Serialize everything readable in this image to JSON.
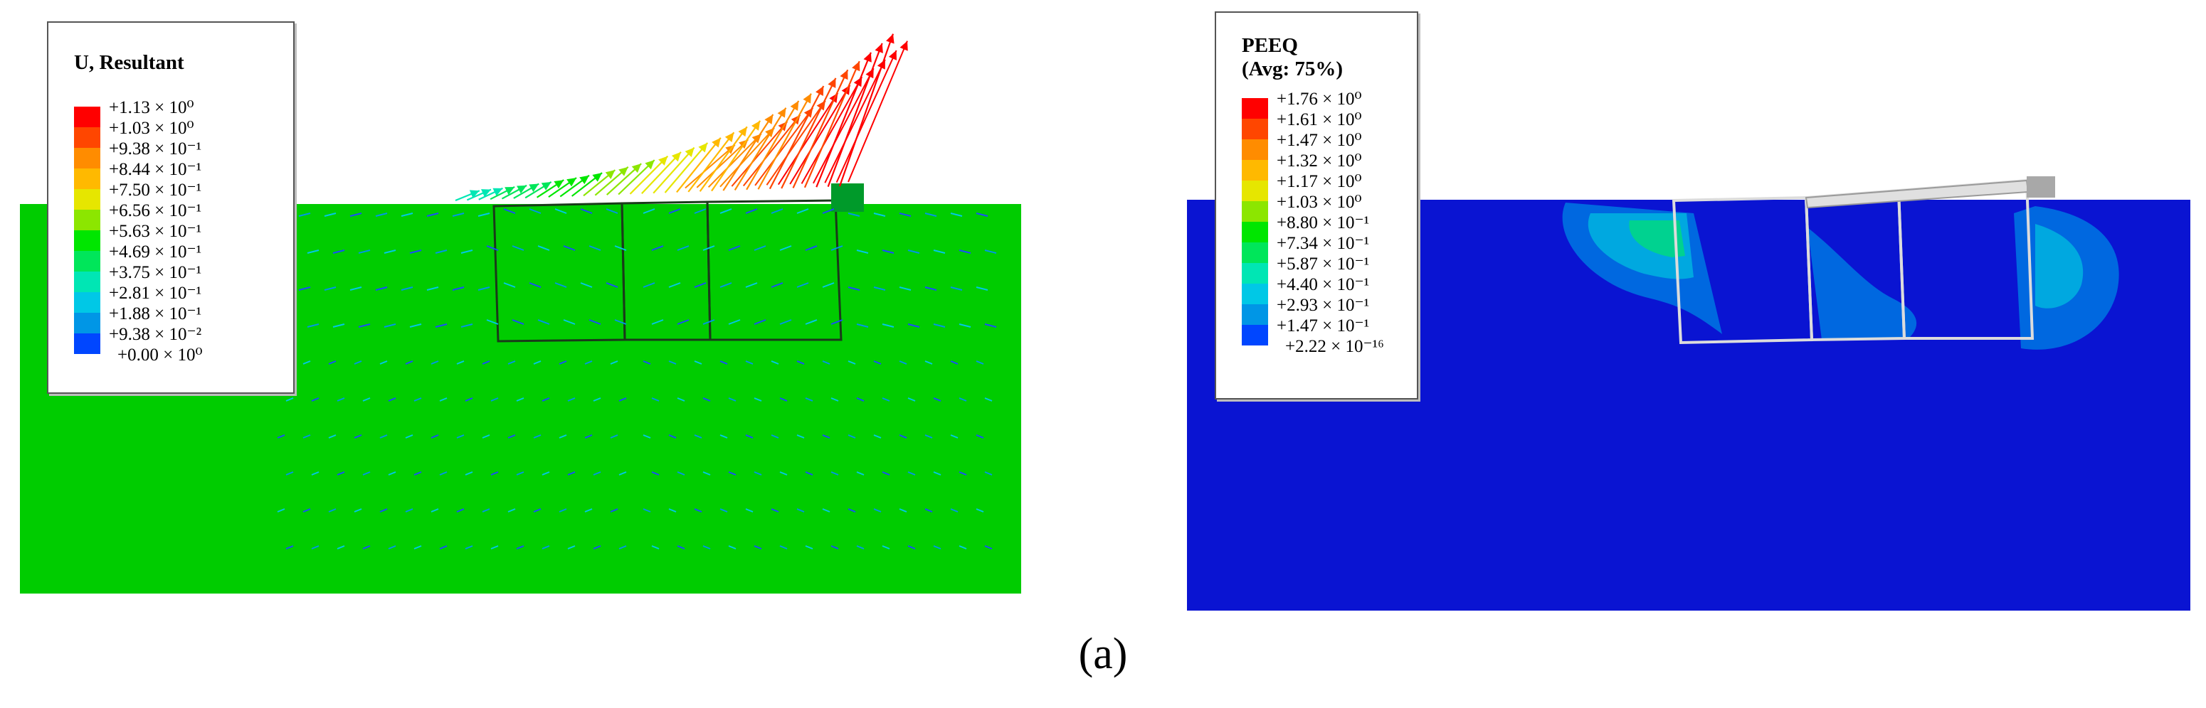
{
  "figure": {
    "caption": "(a)"
  },
  "left_panel": {
    "legend": {
      "title": "U, Resultant",
      "entries": [
        {
          "label": "+1.13 × 10⁰",
          "color": "#ff0000"
        },
        {
          "label": "+1.03 × 10⁰",
          "color": "#ff4600"
        },
        {
          "label": "+9.38 × 10⁻¹",
          "color": "#ff8c00"
        },
        {
          "label": "+8.44 × 10⁻¹",
          "color": "#ffb900"
        },
        {
          "label": "+7.50 × 10⁻¹",
          "color": "#e6e600"
        },
        {
          "label": "+6.56 × 10⁻¹",
          "color": "#8ce600"
        },
        {
          "label": "+5.63 × 10⁻¹",
          "color": "#00e600"
        },
        {
          "label": "+4.69 × 10⁻¹",
          "color": "#00e65a"
        },
        {
          "label": "+3.75 × 10⁻¹",
          "color": "#00e6b4"
        },
        {
          "label": "+2.81 × 10⁻¹",
          "color": "#00c8e6"
        },
        {
          "label": "+1.88 × 10⁻¹",
          "color": "#0096e6"
        },
        {
          "label": "+9.38 × 10⁻²",
          "color": "#0046ff"
        }
      ],
      "min_label": "+0.00 × 10⁰"
    },
    "contour_color": "#00cc00"
  },
  "right_panel": {
    "legend": {
      "title_line1": "PEEQ",
      "title_line2": "(Avg: 75%)",
      "entries": [
        {
          "label": "+1.76 × 10⁰",
          "color": "#ff0000"
        },
        {
          "label": "+1.61 × 10⁰",
          "color": "#ff4600"
        },
        {
          "label": "+1.47 × 10⁰",
          "color": "#ff8c00"
        },
        {
          "label": "+1.32 × 10⁰",
          "color": "#ffb900"
        },
        {
          "label": "+1.17 × 10⁰",
          "color": "#e6e600"
        },
        {
          "label": "+1.03 × 10⁰",
          "color": "#8ce600"
        },
        {
          "label": "+8.80 × 10⁻¹",
          "color": "#00e600"
        },
        {
          "label": "+7.34 × 10⁻¹",
          "color": "#00e65a"
        },
        {
          "label": "+5.87 × 10⁻¹",
          "color": "#00e6b4"
        },
        {
          "label": "+4.40 × 10⁻¹",
          "color": "#00c8e6"
        },
        {
          "label": "+2.93 × 10⁻¹",
          "color": "#0096e6"
        },
        {
          "label": "+1.47 × 10⁻¹",
          "color": "#0046ff"
        }
      ],
      "min_label": "+2.22 × 10⁻¹⁶"
    },
    "contour_color": "#0a14d2"
  }
}
